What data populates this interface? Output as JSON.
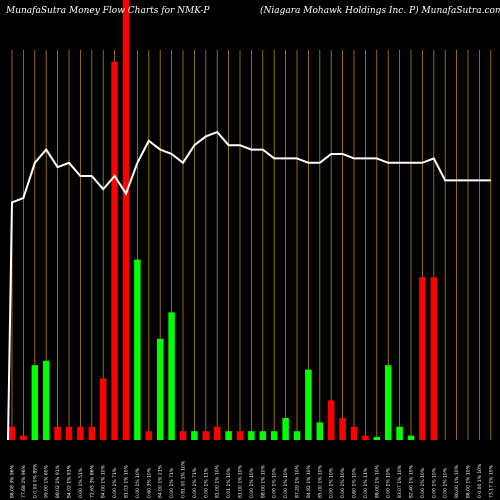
{
  "header": {
    "title_left": "MunafaSutra  Money Flow  Charts for NMK-P",
    "title_right": "(Niagara  Mohawk Holdings Inc. P) MunafaSutra.com"
  },
  "colors": {
    "background": "#000000",
    "grid": "#b8860b",
    "up": "#00ff00",
    "down": "#ff0000",
    "line": "#ffffff"
  },
  "chart_data": {
    "type": "bar",
    "title": "",
    "xlabel": "",
    "ylabel": "",
    "ylim": [
      0,
      100
    ],
    "categories": [
      "88.08 3% 96%",
      "77.68 2% 96%",
      "0 0.00 0% 89%",
      "99.00 1% 60%",
      "88.02 1% 91%",
      "84.02 1% 93%",
      "0.00 1% 51%",
      "72.65 3% 86%",
      "84.00 1% 10%",
      "0.00 1% 71%",
      "81.03 1% 10%",
      "0.00 1% 10%",
      "0.60 3% 10%",
      "84.00 1% 21%",
      "0.00 1% 71%",
      "0 81.00 1% 10%",
      "0.00 1% 71%",
      "0.00 1% 11%",
      "81.00 1% 10%",
      "0.01 1% 10%",
      "81.00 1% 10%",
      "0.00 1% 10%",
      "88.00 1% 10%",
      "0.00 1% 10%",
      "0.00 1% 10%",
      "87.29 1% 10%",
      "84.82 1% 10%",
      "85.00 1% 10%",
      "0.00 1% 10%",
      "0.00 1% 10%",
      "0.60 1% 10%",
      "0.00 1% 11%",
      "88.00 1% 10%",
      "0.00 1% 10%",
      "83.07 1% 10%",
      "82.40 1% 10%",
      "0.00 1% 10%",
      "0.00 1% 10%",
      "0.00 1% 10%",
      "80.00 1% 10%",
      "88.00 1% 10%",
      "0 0.00 1% 10%",
      "73.17 1% 10%"
    ],
    "series": [
      {
        "values": [
          3,
          1,
          17,
          18,
          3,
          3,
          3,
          3,
          14,
          86,
          100,
          41,
          2,
          23,
          29,
          2,
          2,
          2,
          3,
          2,
          2,
          2,
          2,
          2,
          5,
          2,
          16,
          4,
          9,
          5,
          3,
          1,
          0.7,
          17,
          3,
          1,
          37,
          37,
          0,
          0,
          0,
          0,
          0
        ],
        "colors": [
          "down",
          "down",
          "up",
          "up",
          "down",
          "down",
          "down",
          "down",
          "down",
          "down",
          "down",
          "up",
          "down",
          "up",
          "up",
          "down",
          "up",
          "down",
          "down",
          "up",
          "down",
          "up",
          "up",
          "up",
          "up",
          "up",
          "up",
          "up",
          "down",
          "down",
          "down",
          "down",
          "up",
          "up",
          "up",
          "up",
          "down",
          "down",
          "down",
          "down",
          "down",
          "down",
          "down"
        ]
      }
    ],
    "line_values": [
      54,
      55,
      63,
      66,
      62,
      63,
      60,
      60,
      57,
      60,
      56,
      63,
      68,
      66,
      65,
      63,
      67,
      69,
      70,
      67,
      67,
      66,
      66,
      64,
      64,
      64,
      63,
      63,
      65,
      65,
      64,
      64,
      64,
      63,
      63,
      63,
      63,
      64,
      59,
      59,
      59,
      59,
      59
    ],
    "line_ylim": [
      0,
      100
    ],
    "grid": true
  }
}
